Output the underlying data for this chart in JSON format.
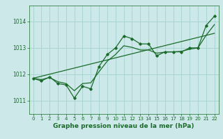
{
  "xlabel": "Graphe pression niveau de la mer (hPa)",
  "bg_color": "#cce8e8",
  "grid_color": "#aad4d4",
  "line_color": "#1a6b2a",
  "xlim": [
    -0.5,
    22.5
  ],
  "ylim": [
    1010.5,
    1014.6
  ],
  "yticks": [
    1011,
    1012,
    1013,
    1014
  ],
  "xticks": [
    0,
    1,
    2,
    3,
    4,
    5,
    6,
    7,
    8,
    9,
    10,
    11,
    12,
    13,
    14,
    15,
    16,
    17,
    18,
    19,
    20,
    21,
    22
  ],
  "main_data": {
    "x": [
      0,
      1,
      2,
      3,
      4,
      5,
      6,
      7,
      8,
      9,
      10,
      11,
      12,
      13,
      14,
      15,
      16,
      17,
      18,
      19,
      20,
      21,
      22
    ],
    "y": [
      1011.85,
      1011.75,
      1011.9,
      1011.65,
      1011.6,
      1011.1,
      1011.55,
      1011.45,
      1012.3,
      1012.75,
      1013.0,
      1013.45,
      1013.35,
      1013.15,
      1013.15,
      1012.7,
      1012.85,
      1012.85,
      1012.85,
      1013.0,
      1013.0,
      1013.85,
      1014.2
    ]
  },
  "trend_data": {
    "x": [
      0,
      22
    ],
    "y": [
      1011.85,
      1013.55
    ]
  },
  "smooth_data": {
    "x": [
      0,
      1,
      2,
      3,
      4,
      5,
      6,
      7,
      8,
      9,
      10,
      11,
      12,
      13,
      14,
      15,
      16,
      17,
      18,
      19,
      20,
      21,
      22
    ],
    "y": [
      1011.85,
      1011.8,
      1011.88,
      1011.72,
      1011.65,
      1011.38,
      1011.65,
      1011.68,
      1012.1,
      1012.5,
      1012.75,
      1013.08,
      1013.02,
      1012.92,
      1012.92,
      1012.8,
      1012.84,
      1012.85,
      1012.87,
      1012.95,
      1013.0,
      1013.48,
      1013.88
    ]
  }
}
